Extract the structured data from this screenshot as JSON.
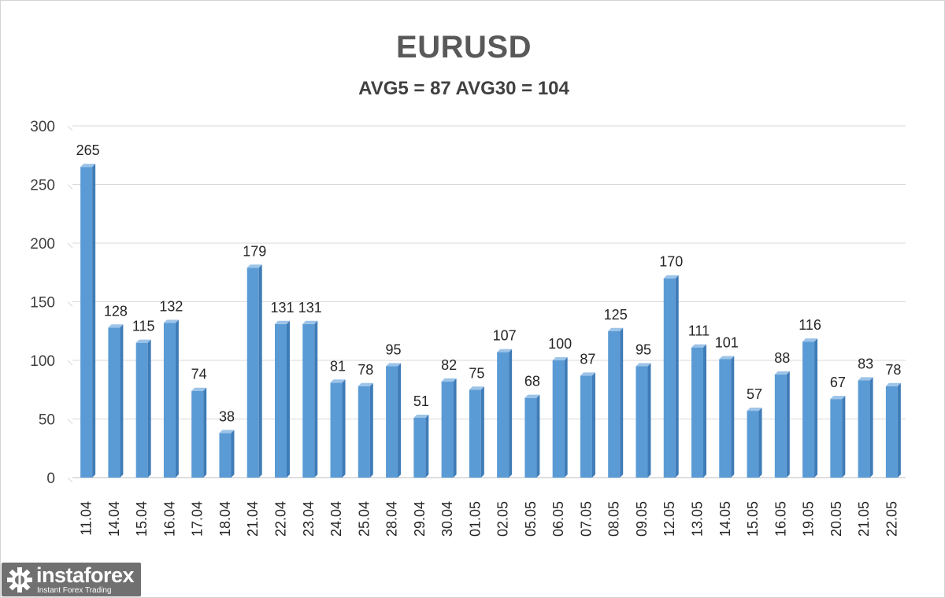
{
  "chart_data": {
    "type": "bar",
    "title": "EURUSD",
    "subtitle": "AVG5 = 87 AVG30 = 104",
    "xlabel": "",
    "ylabel": "",
    "ylim": [
      0,
      300
    ],
    "y_ticks": [
      "0",
      "50",
      "100",
      "150",
      "200",
      "250",
      "300"
    ],
    "grid": true,
    "legend": "none",
    "bar_color": "#5b9bd5",
    "categories": [
      "11.04",
      "14.04",
      "15.04",
      "16.04",
      "17.04",
      "18.04",
      "21.04",
      "22.04",
      "23.04",
      "24.04",
      "25.04",
      "28.04",
      "29.04",
      "30.04",
      "01.05",
      "02.05",
      "05.05",
      "06.05",
      "07.05",
      "08.05",
      "09.05",
      "12.05",
      "13.05",
      "14.05",
      "15.05",
      "16.05",
      "19.05",
      "20.05",
      "21.05",
      "22.05"
    ],
    "values": [
      265,
      128,
      115,
      132,
      74,
      38,
      179,
      131,
      131,
      81,
      78,
      95,
      51,
      82,
      75,
      107,
      68,
      100,
      87,
      125,
      95,
      170,
      111,
      101,
      57,
      88,
      116,
      67,
      83,
      78
    ]
  },
  "watermark": {
    "name": "instaforex",
    "tagline": "Instant Forex Trading",
    "icon": "gear-logo-icon"
  }
}
